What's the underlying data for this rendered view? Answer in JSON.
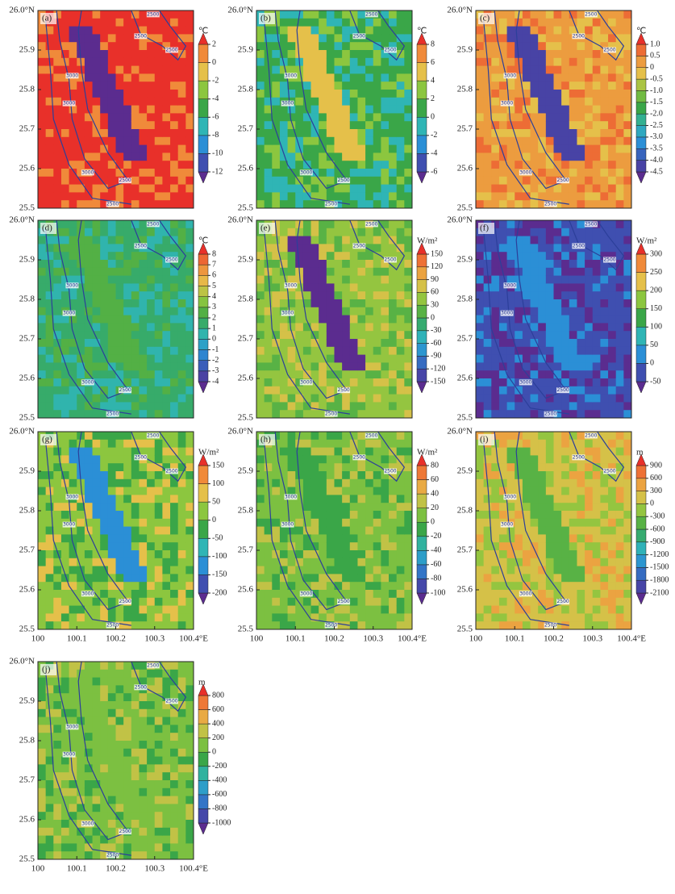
{
  "chart_data": [
    {
      "type": "contour",
      "label": "(a)",
      "unit": "℃",
      "levels": [
        -12,
        -10,
        -8,
        -6,
        -4,
        -2,
        0,
        2
      ],
      "xlim": [
        100,
        100.4
      ],
      "ylim": [
        25.5,
        26.0
      ],
      "yticks": [
        {
          "value": 26.0,
          "label": "26.0°N"
        },
        25.9,
        25.8,
        25.7,
        25.6,
        25.5
      ],
      "contour_levels": [
        3000,
        2500
      ]
    },
    {
      "type": "contour",
      "label": "(b)",
      "unit": "℃",
      "levels": [
        -6,
        -4,
        -2,
        0,
        2,
        4,
        6,
        8
      ],
      "xlim": [
        100,
        100.4
      ],
      "ylim": [
        25.5,
        26.0
      ],
      "yticks": [
        {
          "value": 26.0,
          "label": "26.0°N"
        },
        25.9,
        25.8,
        25.7,
        25.6,
        25.5
      ],
      "contour_levels": [
        3000,
        2500
      ]
    },
    {
      "type": "contour",
      "label": "(c)",
      "unit": "℃",
      "levels": [
        -4.5,
        {
          "value": -4,
          "label": "-4.0"
        },
        -3.5,
        {
          "value": -3,
          "label": "-3.0"
        },
        -2.5,
        {
          "value": -2,
          "label": "-2.0"
        },
        -1.5,
        {
          "value": -1,
          "label": "-1.0"
        },
        -0.5,
        0,
        0.5,
        {
          "value": 1,
          "label": "1.0"
        }
      ],
      "xlim": [
        100,
        100.4
      ],
      "ylim": [
        25.5,
        26.0
      ],
      "yticks": [
        {
          "value": 26.0,
          "label": "26.0°N"
        },
        25.9,
        25.8,
        25.7,
        25.6,
        25.5
      ],
      "contour_levels": [
        3000,
        2500
      ]
    },
    {
      "type": "contour",
      "label": "(d)",
      "unit": "℃",
      "levels": [
        -4,
        -3,
        -2,
        -1,
        0,
        1,
        2,
        3,
        4,
        5,
        6,
        7,
        8
      ],
      "xlim": [
        100,
        100.4
      ],
      "ylim": [
        25.5,
        26.0
      ],
      "yticks": [
        {
          "value": 26.0,
          "label": "26.0°N"
        },
        25.9,
        25.8,
        25.7,
        25.6,
        25.5
      ],
      "contour_levels": [
        3000,
        2500
      ]
    },
    {
      "type": "contour",
      "label": "(e)",
      "unit": "W/m²",
      "levels": [
        -150,
        -120,
        -90,
        -60,
        -30,
        0,
        30,
        60,
        90,
        120,
        150
      ],
      "xlim": [
        100,
        100.4
      ],
      "ylim": [
        25.5,
        26.0
      ],
      "yticks": [
        {
          "value": 26.0,
          "label": "26.0°N"
        },
        25.9,
        25.8,
        25.7,
        25.6,
        25.5
      ],
      "contour_levels": [
        3000,
        2500
      ]
    },
    {
      "type": "contour",
      "label": "(f)",
      "unit": "W/m²",
      "levels": [
        -50,
        0,
        50,
        100,
        150,
        200,
        250,
        300
      ],
      "xlim": [
        100,
        100.4
      ],
      "ylim": [
        25.5,
        26.0
      ],
      "yticks": [
        {
          "value": 26.0,
          "label": "26.0°N"
        },
        25.9,
        25.8,
        25.7,
        25.6,
        25.5
      ],
      "contour_levels": [
        3000,
        2500
      ]
    },
    {
      "type": "contour",
      "label": "(g)",
      "unit": "W/m²",
      "levels": [
        -200,
        -150,
        -100,
        -50,
        0,
        50,
        100,
        150
      ],
      "xlim": [
        100,
        100.4
      ],
      "ylim": [
        25.5,
        26.0
      ],
      "yticks": [
        {
          "value": 26.0,
          "label": "26.0°N"
        },
        25.9,
        25.8,
        25.7,
        25.6,
        25.5
      ],
      "xticks": [
        100,
        100.1,
        100.2,
        100.3,
        {
          "value": 100.4,
          "label": "100.4°E"
        }
      ],
      "contour_levels": [
        3000,
        2500
      ]
    },
    {
      "type": "contour",
      "label": "(h)",
      "unit": "W/m²",
      "levels": [
        -100,
        -80,
        -60,
        -40,
        -20,
        0,
        20,
        40,
        60,
        80
      ],
      "xlim": [
        100,
        100.4
      ],
      "ylim": [
        25.5,
        26.0
      ],
      "yticks": [
        {
          "value": 26.0,
          "label": "26.0°N"
        },
        25.9,
        25.8,
        25.7,
        25.6,
        25.5
      ],
      "xticks": [
        100,
        100.1,
        100.2,
        100.3,
        {
          "value": 100.4,
          "label": "100.4°E"
        }
      ],
      "contour_levels": [
        3000,
        2500
      ]
    },
    {
      "type": "contour",
      "label": "(i)",
      "unit": "m",
      "levels": [
        -2100,
        -1800,
        -1500,
        -1200,
        -900,
        -600,
        -300,
        0,
        300,
        600,
        900
      ],
      "xlim": [
        100,
        100.4
      ],
      "ylim": [
        25.5,
        26.0
      ],
      "yticks": [
        {
          "value": 26.0,
          "label": "26.0°N"
        },
        25.9,
        25.8,
        25.7,
        25.6,
        25.5
      ],
      "xticks": [
        100,
        100.1,
        100.2,
        100.3,
        {
          "value": 100.4,
          "label": "100.4°E"
        }
      ],
      "contour_levels": [
        3000,
        2500
      ]
    },
    {
      "type": "contour",
      "label": "(j)",
      "unit": "m",
      "levels": [
        -1000,
        -800,
        -600,
        -400,
        -200,
        0,
        200,
        400,
        600,
        800
      ],
      "xlim": [
        100,
        100.4
      ],
      "ylim": [
        25.5,
        26.0
      ],
      "yticks": [
        {
          "value": 26.0,
          "label": "26.0°N"
        },
        25.9,
        25.8,
        25.7,
        25.6,
        25.5
      ],
      "xticks": [
        100,
        100.1,
        100.2,
        100.3,
        {
          "value": 100.4,
          "label": "100.4°E"
        }
      ],
      "contour_levels": [
        3000,
        2500
      ]
    }
  ]
}
